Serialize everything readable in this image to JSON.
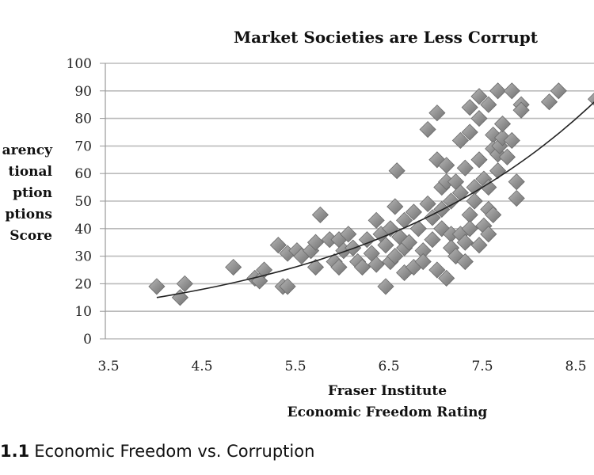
{
  "chart_data": {
    "type": "scatter",
    "title": "Market Societies are Less Corrupt",
    "xlabel_lines": [
      "Fraser Institute",
      "Economic Freedom Rating"
    ],
    "ylabel_lines": [
      "arency",
      "tional",
      "ption",
      "ptions",
      "Score"
    ],
    "xlim": [
      3.5,
      8.8
    ],
    "ylim": [
      0,
      100
    ],
    "xticks": [
      3.5,
      4.5,
      5.5,
      6.5,
      7.5,
      8.5
    ],
    "xtick_labels": [
      "3.5",
      "4.5",
      "5.5",
      "6.5",
      "7.5",
      "8.5"
    ],
    "yticks": [
      0,
      10,
      20,
      30,
      40,
      50,
      60,
      70,
      80,
      90,
      100
    ],
    "ytick_labels": [
      "0",
      "10",
      "20",
      "30",
      "40",
      "50",
      "60",
      "70",
      "80",
      "90",
      "100"
    ],
    "grid": "horizontal",
    "marker_color": "#8c8c8c",
    "trendline": {
      "type": "exponential",
      "a": 3.31,
      "b": 0.373,
      "x_range": [
        4.05,
        8.75
      ],
      "color": "#222222"
    },
    "points": [
      [
        4.05,
        19
      ],
      [
        4.3,
        15
      ],
      [
        4.35,
        20
      ],
      [
        4.87,
        26
      ],
      [
        5.1,
        22
      ],
      [
        5.15,
        21
      ],
      [
        5.2,
        25
      ],
      [
        5.35,
        34
      ],
      [
        5.4,
        19
      ],
      [
        5.45,
        19
      ],
      [
        5.45,
        31
      ],
      [
        5.55,
        32
      ],
      [
        5.6,
        30
      ],
      [
        5.7,
        32
      ],
      [
        5.75,
        35
      ],
      [
        5.75,
        26
      ],
      [
        5.8,
        45
      ],
      [
        5.9,
        36
      ],
      [
        5.95,
        28
      ],
      [
        6.0,
        26
      ],
      [
        6.0,
        36
      ],
      [
        6.05,
        32
      ],
      [
        6.1,
        38
      ],
      [
        6.15,
        33
      ],
      [
        6.2,
        28
      ],
      [
        6.25,
        26
      ],
      [
        6.3,
        36
      ],
      [
        6.35,
        31
      ],
      [
        6.4,
        43
      ],
      [
        6.4,
        27
      ],
      [
        6.45,
        38
      ],
      [
        6.5,
        19
      ],
      [
        6.5,
        34
      ],
      [
        6.55,
        40
      ],
      [
        6.55,
        28
      ],
      [
        6.6,
        48
      ],
      [
        6.6,
        30
      ],
      [
        6.62,
        61
      ],
      [
        6.65,
        37
      ],
      [
        6.7,
        24
      ],
      [
        6.7,
        43
      ],
      [
        6.7,
        33
      ],
      [
        6.75,
        35
      ],
      [
        6.8,
        46
      ],
      [
        6.8,
        26
      ],
      [
        6.85,
        40
      ],
      [
        6.9,
        32
      ],
      [
        6.9,
        28
      ],
      [
        6.95,
        49
      ],
      [
        6.95,
        76
      ],
      [
        7.0,
        44
      ],
      [
        7.0,
        36
      ],
      [
        7.05,
        82
      ],
      [
        7.05,
        65
      ],
      [
        7.05,
        25
      ],
      [
        7.1,
        55
      ],
      [
        7.1,
        47
      ],
      [
        7.1,
        40
      ],
      [
        7.15,
        63
      ],
      [
        7.15,
        22
      ],
      [
        7.15,
        57
      ],
      [
        7.2,
        38
      ],
      [
        7.2,
        50
      ],
      [
        7.2,
        33
      ],
      [
        7.25,
        57
      ],
      [
        7.25,
        30
      ],
      [
        7.3,
        72
      ],
      [
        7.3,
        53
      ],
      [
        7.3,
        38
      ],
      [
        7.35,
        62
      ],
      [
        7.35,
        35
      ],
      [
        7.35,
        28
      ],
      [
        7.4,
        75
      ],
      [
        7.4,
        84
      ],
      [
        7.4,
        45
      ],
      [
        7.4,
        40
      ],
      [
        7.45,
        55
      ],
      [
        7.45,
        50
      ],
      [
        7.5,
        88
      ],
      [
        7.5,
        80
      ],
      [
        7.5,
        65
      ],
      [
        7.5,
        34
      ],
      [
        7.55,
        58
      ],
      [
        7.55,
        41
      ],
      [
        7.6,
        85
      ],
      [
        7.6,
        47
      ],
      [
        7.6,
        38
      ],
      [
        7.6,
        55
      ],
      [
        7.65,
        74
      ],
      [
        7.65,
        69
      ],
      [
        7.65,
        45
      ],
      [
        7.7,
        90
      ],
      [
        7.7,
        61
      ],
      [
        7.7,
        67
      ],
      [
        7.72,
        70
      ],
      [
        7.75,
        73
      ],
      [
        7.75,
        78
      ],
      [
        7.8,
        66
      ],
      [
        7.85,
        90
      ],
      [
        7.85,
        72
      ],
      [
        7.9,
        57
      ],
      [
        7.9,
        51
      ],
      [
        7.95,
        85
      ],
      [
        7.95,
        83
      ],
      [
        8.25,
        86
      ],
      [
        8.35,
        90
      ],
      [
        8.75,
        87
      ]
    ]
  },
  "caption": {
    "number": "1.1",
    "text": "Economic Freedom vs. Corruption"
  }
}
